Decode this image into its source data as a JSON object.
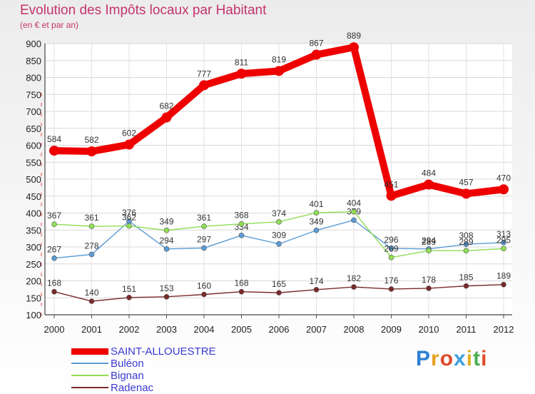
{
  "title": "Evolution des Impôts locaux par Habitant",
  "subtitle": "(en € et par an)",
  "brand": {
    "text": "Proxiti",
    "colors": [
      "#2d7fd4",
      "#e8a020",
      "#e04a2a",
      "#3ba0e0",
      "#e0b020",
      "#4caf50",
      "#e04a2a"
    ]
  },
  "chart_data": {
    "type": "line",
    "title": "Evolution des Impôts locaux par Habitant",
    "subtitle": "(en € et par an)",
    "xlabel": "",
    "ylabel": "",
    "ylim": [
      100,
      900
    ],
    "yticks": [
      "100",
      "150",
      "200",
      "250",
      "300",
      "350",
      "400",
      "450",
      "500",
      "550",
      "600",
      "650",
      "700",
      "750",
      "800",
      "850",
      "900"
    ],
    "x": [
      "2000",
      "2001",
      "2002",
      "2003",
      "2004",
      "2005",
      "2006",
      "2007",
      "2008",
      "2009",
      "2010",
      "2011",
      "2012"
    ],
    "grid": true,
    "legend_position": "bottom-left",
    "series": [
      {
        "name": "SAINT-ALLOUESTRE",
        "color": "#ee0000",
        "style": "bold",
        "values": [
          584,
          582,
          602,
          682,
          777,
          811,
          819,
          867,
          889,
          451,
          484,
          457,
          470
        ],
        "labels": [
          "584",
          "582",
          "602",
          "682",
          "777",
          "811",
          "819",
          "867",
          "889",
          "451",
          "484",
          "457",
          "470"
        ]
      },
      {
        "name": "Buléon",
        "color": "#5b9bd5",
        "style": "thin",
        "values": [
          267,
          278,
          376,
          294,
          297,
          334,
          309,
          349,
          379,
          296,
          294,
          308,
          313
        ],
        "labels": [
          "267",
          "278",
          "376",
          "294",
          "297",
          "334",
          "309",
          "349",
          "379",
          "296",
          "294",
          "308",
          "313"
        ]
      },
      {
        "name": "Bignan",
        "color": "#90dd55",
        "style": "thin",
        "values": [
          367,
          361,
          362,
          349,
          361,
          368,
          374,
          401,
          404,
          269,
          289,
          289,
          295
        ],
        "labels": [
          "367",
          "361",
          "362",
          "349",
          "361",
          "368",
          "374",
          "401",
          "404",
          "269",
          "289",
          "289",
          "295"
        ]
      },
      {
        "name": "Radenac",
        "color": "#7a2a2a",
        "style": "thin",
        "values": [
          168,
          140,
          151,
          153,
          160,
          168,
          165,
          174,
          182,
          176,
          178,
          185,
          189
        ],
        "labels": [
          "168",
          "140",
          "151",
          "153",
          "160",
          "168",
          "165",
          "174",
          "182",
          "176",
          "178",
          "185",
          "189"
        ]
      }
    ]
  }
}
